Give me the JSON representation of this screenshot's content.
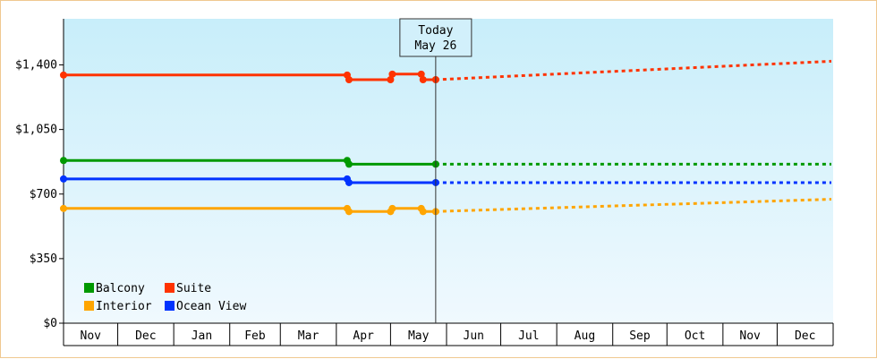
{
  "chart_data": {
    "type": "line",
    "title": "",
    "xlabel": "",
    "ylabel": "",
    "ylim": [
      0,
      1650
    ],
    "y_ticks": [
      {
        "value": 0,
        "label": "$0"
      },
      {
        "value": 350,
        "label": "$350"
      },
      {
        "value": 700,
        "label": "$700"
      },
      {
        "value": 1050,
        "label": "$1,050"
      },
      {
        "value": 1400,
        "label": "$1,400"
      }
    ],
    "x_range": [
      "2024-11-01",
      "2025-12-31"
    ],
    "months": [
      {
        "label": "Nov",
        "start": "2024-11-01"
      },
      {
        "label": "Dec",
        "start": "2024-12-01"
      },
      {
        "label": "Jan",
        "start": "2025-01-01"
      },
      {
        "label": "Feb",
        "start": "2025-02-01"
      },
      {
        "label": "Mar",
        "start": "2025-03-01"
      },
      {
        "label": "Apr",
        "start": "2025-04-01"
      },
      {
        "label": "May",
        "start": "2025-05-01"
      },
      {
        "label": "Jun",
        "start": "2025-06-01"
      },
      {
        "label": "Jul",
        "start": "2025-07-01"
      },
      {
        "label": "Aug",
        "start": "2025-08-01"
      },
      {
        "label": "Sep",
        "start": "2025-09-01"
      },
      {
        "label": "Oct",
        "start": "2025-10-01"
      },
      {
        "label": "Nov",
        "start": "2025-11-01"
      },
      {
        "label": "Dec",
        "start": "2025-12-01"
      }
    ],
    "today": {
      "line1": "Today",
      "line2": "May 26",
      "date": "2025-05-26"
    },
    "background": {
      "top": "#c8eefa",
      "bottom": "#f0f9fe"
    },
    "series": [
      {
        "name": "Suite",
        "color": "#ff3300",
        "history": [
          {
            "x": "2024-11-01",
            "y": 1345
          },
          {
            "x": "2025-04-07",
            "y": 1345
          },
          {
            "x": "2025-04-08",
            "y": 1320
          },
          {
            "x": "2025-05-01",
            "y": 1320
          },
          {
            "x": "2025-05-02",
            "y": 1350
          },
          {
            "x": "2025-05-18",
            "y": 1350
          },
          {
            "x": "2025-05-19",
            "y": 1320
          },
          {
            "x": "2025-05-26",
            "y": 1320
          }
        ],
        "forecast": [
          {
            "x": "2025-05-26",
            "y": 1320
          },
          {
            "x": "2025-12-31",
            "y": 1420
          }
        ],
        "markers": [
          {
            "x": "2024-11-01",
            "y": 1345
          },
          {
            "x": "2025-04-07",
            "y": 1345
          },
          {
            "x": "2025-04-08",
            "y": 1320
          },
          {
            "x": "2025-05-01",
            "y": 1320
          },
          {
            "x": "2025-05-02",
            "y": 1350
          },
          {
            "x": "2025-05-18",
            "y": 1350
          },
          {
            "x": "2025-05-19",
            "y": 1320
          },
          {
            "x": "2025-05-26",
            "y": 1320
          }
        ]
      },
      {
        "name": "Balcony",
        "color": "#009900",
        "history": [
          {
            "x": "2024-11-01",
            "y": 882
          },
          {
            "x": "2025-04-07",
            "y": 882
          },
          {
            "x": "2025-04-08",
            "y": 862
          },
          {
            "x": "2025-05-26",
            "y": 862
          }
        ],
        "forecast": [
          {
            "x": "2025-05-26",
            "y": 862
          },
          {
            "x": "2025-12-31",
            "y": 862
          }
        ],
        "markers": [
          {
            "x": "2024-11-01",
            "y": 882
          },
          {
            "x": "2025-04-07",
            "y": 882
          },
          {
            "x": "2025-04-08",
            "y": 862
          },
          {
            "x": "2025-05-26",
            "y": 862
          }
        ]
      },
      {
        "name": "Ocean View",
        "color": "#0033ff",
        "history": [
          {
            "x": "2024-11-01",
            "y": 782
          },
          {
            "x": "2025-04-07",
            "y": 782
          },
          {
            "x": "2025-04-08",
            "y": 762
          },
          {
            "x": "2025-05-26",
            "y": 762
          }
        ],
        "forecast": [
          {
            "x": "2025-05-26",
            "y": 762
          },
          {
            "x": "2025-12-31",
            "y": 762
          }
        ],
        "markers": [
          {
            "x": "2024-11-01",
            "y": 782
          },
          {
            "x": "2025-04-07",
            "y": 782
          },
          {
            "x": "2025-04-08",
            "y": 762
          },
          {
            "x": "2025-05-26",
            "y": 762
          }
        ]
      },
      {
        "name": "Interior",
        "color": "#ffa500",
        "history": [
          {
            "x": "2024-11-01",
            "y": 622
          },
          {
            "x": "2025-04-07",
            "y": 622
          },
          {
            "x": "2025-04-08",
            "y": 605
          },
          {
            "x": "2025-05-01",
            "y": 605
          },
          {
            "x": "2025-05-02",
            "y": 622
          },
          {
            "x": "2025-05-18",
            "y": 622
          },
          {
            "x": "2025-05-19",
            "y": 605
          },
          {
            "x": "2025-05-26",
            "y": 605
          }
        ],
        "forecast": [
          {
            "x": "2025-05-26",
            "y": 605
          },
          {
            "x": "2025-12-31",
            "y": 672
          }
        ],
        "markers": [
          {
            "x": "2024-11-01",
            "y": 622
          },
          {
            "x": "2025-04-07",
            "y": 622
          },
          {
            "x": "2025-04-08",
            "y": 605
          },
          {
            "x": "2025-05-01",
            "y": 605
          },
          {
            "x": "2025-05-02",
            "y": 622
          },
          {
            "x": "2025-05-18",
            "y": 622
          },
          {
            "x": "2025-05-19",
            "y": 605
          },
          {
            "x": "2025-05-26",
            "y": 605
          }
        ]
      }
    ],
    "legend": {
      "placement": "bottom-left",
      "rows": [
        [
          "Balcony",
          "Suite"
        ],
        [
          "Interior",
          "Ocean View"
        ]
      ]
    },
    "grid": false
  }
}
